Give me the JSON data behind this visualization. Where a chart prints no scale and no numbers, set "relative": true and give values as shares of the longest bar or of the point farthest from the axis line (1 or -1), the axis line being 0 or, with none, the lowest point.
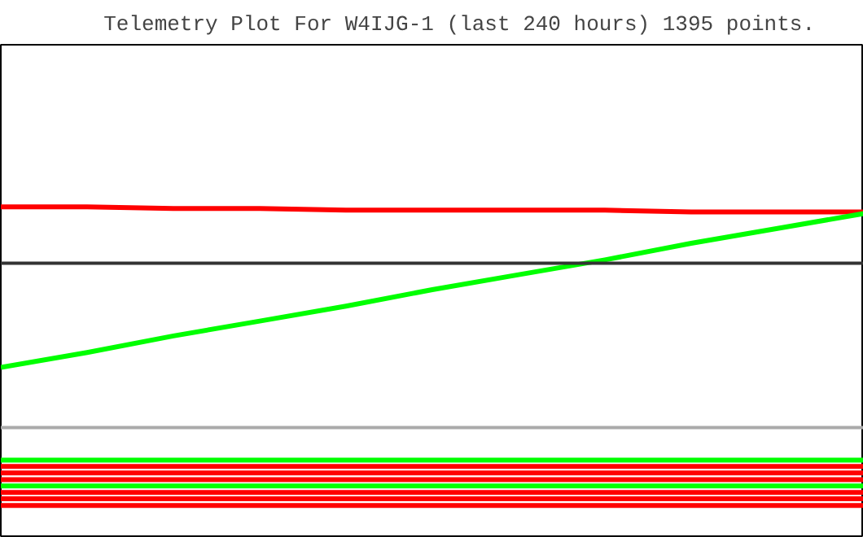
{
  "chart_data": {
    "type": "line",
    "title": "Telemetry Plot For W4IJG-1 (last 240 hours) 1395 points.",
    "relative": true,
    "grid": false,
    "marker": "none",
    "line_style": "solid",
    "categories": [
      null,
      null,
      null,
      null,
      null,
      null,
      null,
      null,
      null,
      null,
      null
    ],
    "series": [
      {
        "color": "#ff0000",
        "values": [
          1.0,
          1.0,
          0.995,
          0.995,
          0.99,
          0.99,
          0.99,
          0.99,
          0.985,
          0.985,
          0.985
        ]
      },
      {
        "color": "#00ff00",
        "values": [
          0.515,
          0.56,
          0.61,
          0.655,
          0.7,
          0.75,
          0.795,
          0.84,
          0.89,
          0.935,
          0.98
        ]
      },
      {
        "color": "#00ff00",
        "values": [
          0.235,
          0.235,
          0.235,
          0.235,
          0.235,
          0.235,
          0.235,
          0.235,
          0.235,
          0.235,
          0.235
        ]
      },
      {
        "color": "#ff0000",
        "values": [
          0.216,
          0.216,
          0.216,
          0.216,
          0.216,
          0.216,
          0.216,
          0.216,
          0.216,
          0.216,
          0.216
        ]
      },
      {
        "color": "#ff0000",
        "values": [
          0.196,
          0.196,
          0.196,
          0.196,
          0.196,
          0.196,
          0.196,
          0.196,
          0.196,
          0.196,
          0.196
        ]
      },
      {
        "color": "#ff0000",
        "values": [
          0.176,
          0.176,
          0.176,
          0.176,
          0.176,
          0.176,
          0.176,
          0.176,
          0.176,
          0.176,
          0.176
        ]
      },
      {
        "color": "#00ff00",
        "values": [
          0.157,
          0.157,
          0.157,
          0.157,
          0.157,
          0.157,
          0.157,
          0.157,
          0.157,
          0.157,
          0.157
        ]
      },
      {
        "color": "#ff0000",
        "values": [
          0.137,
          0.137,
          0.137,
          0.137,
          0.137,
          0.137,
          0.137,
          0.137,
          0.137,
          0.137,
          0.137
        ]
      },
      {
        "color": "#ff0000",
        "values": [
          0.118,
          0.118,
          0.118,
          0.118,
          0.118,
          0.118,
          0.118,
          0.118,
          0.118,
          0.118,
          0.118
        ]
      },
      {
        "color": "#ff0000",
        "values": [
          0.098,
          0.098,
          0.098,
          0.098,
          0.098,
          0.098,
          0.098,
          0.098,
          0.098,
          0.098,
          0.098
        ]
      }
    ],
    "ref_lines": [
      {
        "axis": "y",
        "value": 0.83,
        "color": "#333333"
      },
      {
        "axis": "y",
        "value": 0.333,
        "color": "#aaaaaa"
      }
    ]
  }
}
